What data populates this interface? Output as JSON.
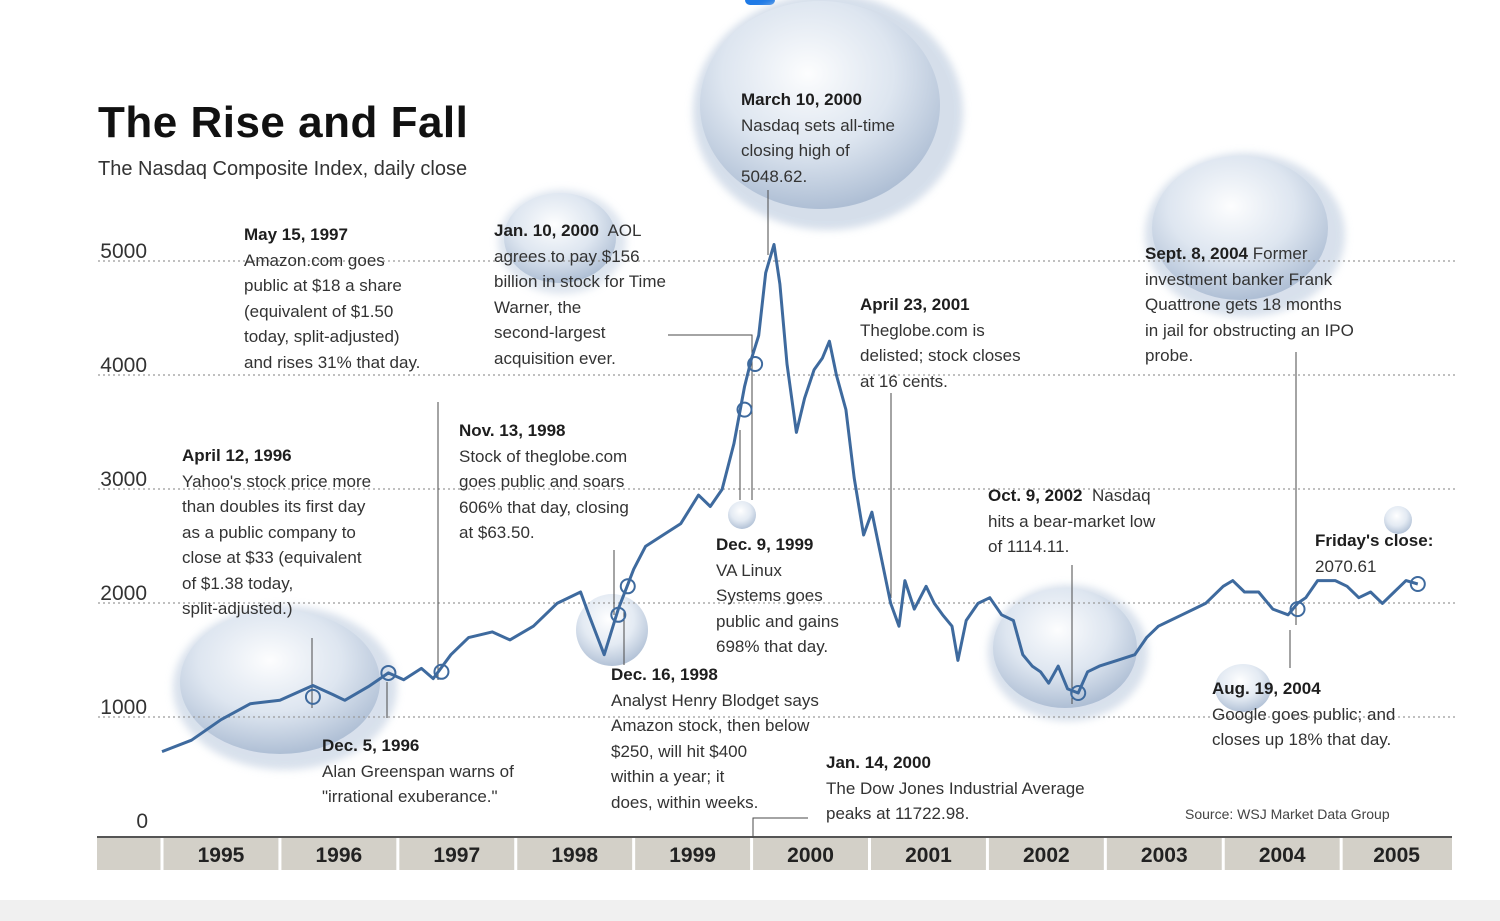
{
  "title": "The Rise and Fall",
  "subtitle": "The Nasdaq Composite Index, daily close",
  "source": "Source: WSJ Market Data Group",
  "colors": {
    "line": "#3e6a9e",
    "bubble": "#c9d6e6",
    "axis_band": "#d3d0c8",
    "grid": "#9a9a9a"
  },
  "annotations": {
    "apr1996": {
      "date": "April 12, 1996",
      "lines": [
        "Yahoo's stock price more",
        "than doubles its first day",
        "as a public company to",
        "close at $33 (equivalent",
        "of $1.38 today,",
        "split-adjusted.)"
      ]
    },
    "dec1996": {
      "date": "Dec. 5, 1996",
      "lines": [
        "Alan Greenspan warns of",
        "\"irrational exuberance.\""
      ]
    },
    "may1997": {
      "date": "May 15, 1997",
      "lines": [
        "Amazon.com goes",
        "public at $18 a share",
        "(equivalent of $1.50",
        "today, split-adjusted)",
        "and rises 31% that day."
      ]
    },
    "nov1998": {
      "date": "Nov. 13, 1998",
      "lines": [
        "Stock of theglobe.com",
        "goes public and soars",
        "606% that day, closing",
        "at $63.50."
      ]
    },
    "dec1998": {
      "date": "Dec. 16, 1998",
      "lines": [
        "Analyst Henry Blodget says",
        "Amazon stock, then below",
        "$250, will hit $400",
        "within a year; it",
        "does, within weeks."
      ]
    },
    "jan2000aol": {
      "date": "Jan. 10, 2000",
      "first": "AOL",
      "lines": [
        "agrees to pay $156",
        "billion in stock for Time",
        "Warner, the",
        "second-largest",
        "acquisition ever."
      ]
    },
    "dec1999": {
      "date": "Dec. 9, 1999",
      "lines": [
        "VA Linux",
        "Systems  goes",
        "public and gains",
        "698% that day."
      ]
    },
    "mar2000": {
      "date": "March 10, 2000",
      "lines": [
        "Nasdaq sets all-time",
        "closing high of",
        "5048.62."
      ]
    },
    "jan2000dow": {
      "date": "Jan. 14, 2000",
      "lines": [
        "The Dow Jones Industrial Average",
        "peaks at 11722.98."
      ]
    },
    "apr2001": {
      "date": "April 23, 2001",
      "lines": [
        "Theglobe.com is",
        "delisted; stock closes",
        "at 16 cents."
      ]
    },
    "oct2002": {
      "date": "Oct. 9, 2002",
      "first": "Nasdaq",
      "lines": [
        "hits a bear-market low",
        "of 1114.11."
      ]
    },
    "sep2004": {
      "date": "Sept. 8, 2004",
      "first": "Former",
      "lines": [
        "investment banker Frank",
        "Quattrone gets 18 months",
        "in jail for obstructing an IPO",
        "probe."
      ]
    },
    "aug2004": {
      "date": "Aug. 19, 2004",
      "lines": [
        "Google goes public; and",
        "closes up 18% that day."
      ]
    },
    "friday": {
      "date": "Friday's close:",
      "lines": [
        "2070.61"
      ]
    }
  },
  "chart_data": {
    "type": "line",
    "title": "The Rise and Fall",
    "subtitle": "The Nasdaq Composite Index, daily close",
    "xlabel": "",
    "ylabel": "",
    "xlim": [
      1995.0,
      2005.94
    ],
    "ylim": [
      0,
      5000
    ],
    "y_ticks": [
      0,
      1000,
      2000,
      3000,
      4000,
      5000
    ],
    "x_categories": [
      "1995",
      "1996",
      "1997",
      "1998",
      "1999",
      "2000",
      "2001",
      "2002",
      "2003",
      "2004",
      "2005"
    ],
    "grid": true,
    "series": [
      {
        "x": [
          1995.0,
          1995.25,
          1995.5,
          1995.75,
          1996.0,
          1996.28,
          1996.45,
          1996.55,
          1996.75,
          1996.92,
          1997.05,
          1997.2,
          1997.3,
          1997.45,
          1997.6,
          1997.8,
          1997.95,
          1998.15,
          1998.35,
          1998.55,
          1998.62,
          1998.75,
          1998.87,
          1999.0,
          1999.1,
          1999.25,
          1999.4,
          1999.55,
          1999.65,
          1999.75,
          1999.85,
          1999.94,
          2000.0,
          2000.06,
          2000.12,
          2000.19,
          2000.24,
          2000.3,
          2000.38,
          2000.45,
          2000.53,
          2000.6,
          2000.66,
          2000.72,
          2000.8,
          2000.87,
          2000.95,
          2001.02,
          2001.1,
          2001.18,
          2001.25,
          2001.3,
          2001.38,
          2001.48,
          2001.55,
          2001.62,
          2001.7,
          2001.75,
          2001.82,
          2001.92,
          2002.02,
          2002.12,
          2002.22,
          2002.3,
          2002.38,
          2002.45,
          2002.52,
          2002.6,
          2002.68,
          2002.77,
          2002.85,
          2002.95,
          2003.1,
          2003.25,
          2003.35,
          2003.45,
          2003.55,
          2003.65,
          2003.75,
          2003.85,
          2004.0,
          2004.08,
          2004.18,
          2004.3,
          2004.42,
          2004.55,
          2004.63,
          2004.7,
          2004.8,
          2004.95,
          2005.05,
          2005.15,
          2005.25,
          2005.35,
          2005.45,
          2005.55,
          2005.65
        ],
        "y": [
          600,
          700,
          880,
          1020,
          1050,
          1180,
          1100,
          1050,
          1170,
          1290,
          1230,
          1330,
          1240,
          1450,
          1600,
          1650,
          1580,
          1700,
          1900,
          2000,
          1800,
          1450,
          1850,
          2200,
          2400,
          2500,
          2600,
          2850,
          2750,
          2900,
          3300,
          3800,
          4050,
          4250,
          4800,
          5048,
          4700,
          4000,
          3400,
          3700,
          3950,
          4050,
          4200,
          3900,
          3600,
          3000,
          2500,
          2700,
          2300,
          1900,
          1700,
          2100,
          1850,
          2050,
          1900,
          1800,
          1700,
          1400,
          1750,
          1900,
          1950,
          1800,
          1750,
          1450,
          1350,
          1300,
          1200,
          1350,
          1150,
          1114,
          1300,
          1350,
          1400,
          1450,
          1600,
          1700,
          1750,
          1800,
          1850,
          1900,
          2050,
          2100,
          2000,
          2000,
          1850,
          1800,
          1900,
          1950,
          2100,
          2100,
          2050,
          1950,
          2000,
          1900,
          2000,
          2100,
          2070
        ],
        "values_note_removed": true
      }
    ],
    "events": [
      {
        "label": "April 12, 1996",
        "x": 1996.28,
        "y": 1080
      },
      {
        "label": "Dec. 5, 1996",
        "x": 1996.92,
        "y": 1290
      },
      {
        "label": "May 15, 1997",
        "x": 1997.37,
        "y": 1300
      },
      {
        "label": "Nov. 13, 1998",
        "x": 1998.87,
        "y": 1800
      },
      {
        "label": "Dec. 16, 1998",
        "x": 1998.95,
        "y": 2050
      },
      {
        "label": "Dec. 9, 1999",
        "x": 1999.94,
        "y": 3600
      },
      {
        "label": "Jan. 10, 2000",
        "x": 2000.03,
        "y": 4000
      },
      {
        "label": "Oct. 9, 2002",
        "x": 2002.77,
        "y": 1114
      },
      {
        "label": "Aug. 19, 2004",
        "x": 2004.63,
        "y": 1850
      },
      {
        "label": "Friday's close",
        "x": 2005.65,
        "y": 2070
      }
    ]
  }
}
